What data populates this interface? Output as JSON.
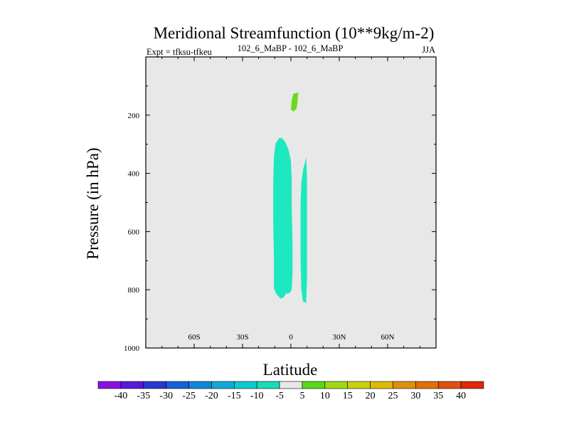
{
  "chart_data": {
    "type": "contour",
    "title": "Meridional Streamfunction (10**9kg/m-2)",
    "subtitle": "102_6_MaBP - 102_6_MaBP",
    "left_label": "Expt = tfksu-tfkeu",
    "right_label": "JJA",
    "xlabel": "Latitude",
    "ylabel": "Pressure (in hPa)",
    "xlim": [
      -90,
      90
    ],
    "ylim": [
      1000,
      0
    ],
    "x_ticks": [
      {
        "value": -60,
        "label": "60S"
      },
      {
        "value": -30,
        "label": "30S"
      },
      {
        "value": 0,
        "label": "0"
      },
      {
        "value": 30,
        "label": "30N"
      },
      {
        "value": 60,
        "label": "60N"
      }
    ],
    "y_ticks": [
      {
        "value": 200,
        "label": "200"
      },
      {
        "value": 400,
        "label": "400"
      },
      {
        "value": 600,
        "label": "600"
      },
      {
        "value": 800,
        "label": "800"
      },
      {
        "value": 1000,
        "label": "1000"
      }
    ],
    "background_color": "#e8e8e8",
    "regions": [
      {
        "name": "negative-cell-left",
        "level": "-10 to -5",
        "color": "#1ee8c0",
        "points": [
          [
            -7.5,
            279
          ],
          [
            -5.5,
            279
          ],
          [
            -3.5,
            292
          ],
          [
            -1.5,
            318
          ],
          [
            0,
            355
          ],
          [
            0.5,
            420
          ],
          [
            0.5,
            520
          ],
          [
            1,
            640
          ],
          [
            1,
            745
          ],
          [
            0.5,
            800
          ],
          [
            -1,
            812
          ],
          [
            -3,
            813
          ],
          [
            -4.5,
            826
          ],
          [
            -6.5,
            830
          ],
          [
            -9,
            815
          ],
          [
            -10.5,
            795
          ],
          [
            -10.5,
            700
          ],
          [
            -11,
            560
          ],
          [
            -11,
            440
          ],
          [
            -10.5,
            340
          ],
          [
            -9.5,
            298
          ]
        ]
      },
      {
        "name": "negative-cell-right",
        "level": "-10 to -5",
        "color": "#1ee8c0",
        "points": [
          [
            9.5,
            345
          ],
          [
            10,
            420
          ],
          [
            10,
            540
          ],
          [
            10,
            660
          ],
          [
            10,
            760
          ],
          [
            9.5,
            845
          ],
          [
            7.5,
            840
          ],
          [
            6.5,
            800
          ],
          [
            6,
            700
          ],
          [
            6,
            600
          ],
          [
            6,
            500
          ],
          [
            6.5,
            430
          ],
          [
            7.5,
            390
          ]
        ]
      },
      {
        "name": "positive-cell-upper",
        "level": "5 to 10",
        "color": "#6ad820",
        "points": [
          [
            1.5,
            127
          ],
          [
            4.5,
            122
          ],
          [
            4,
            160
          ],
          [
            3.5,
            178
          ],
          [
            1.5,
            188
          ],
          [
            0,
            180
          ],
          [
            0.5,
            150
          ]
        ]
      }
    ],
    "colorbar": {
      "labels": [
        "-40",
        "-35",
        "-30",
        "-25",
        "-20",
        "-15",
        "-10",
        "-5",
        "5",
        "10",
        "15",
        "20",
        "25",
        "30",
        "35",
        "40"
      ],
      "colors": [
        "#8a10e0",
        "#5a18d8",
        "#2838d0",
        "#1860d8",
        "#1088d8",
        "#10a8d8",
        "#10c8d0",
        "#18dcb8",
        "#e8e8e8",
        "#58d818",
        "#a0d818",
        "#c8d010",
        "#e0b808",
        "#e09008",
        "#e07008",
        "#e05010",
        "#e02808"
      ]
    }
  }
}
